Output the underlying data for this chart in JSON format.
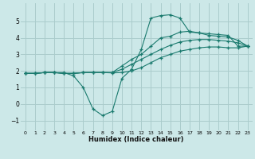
{
  "xlabel": "Humidex (Indice chaleur)",
  "ylabel": "",
  "bg_color": "#cce8e8",
  "grid_color": "#aacccc",
  "line_color": "#1a7a6e",
  "xlim": [
    -0.5,
    23.5
  ],
  "ylim": [
    -1.6,
    6.1
  ],
  "xticks": [
    0,
    1,
    2,
    3,
    4,
    5,
    6,
    7,
    8,
    9,
    10,
    11,
    12,
    13,
    14,
    15,
    16,
    17,
    18,
    19,
    20,
    21,
    22,
    23
  ],
  "yticks": [
    -1,
    0,
    1,
    2,
    3,
    4,
    5
  ],
  "line1_x": [
    0,
    1,
    2,
    3,
    4,
    5,
    6,
    7,
    8,
    9,
    10,
    11,
    12,
    13,
    14,
    15,
    16,
    17,
    18,
    19,
    20,
    21,
    22,
    23
  ],
  "line1_y": [
    1.85,
    1.85,
    1.9,
    1.9,
    1.9,
    1.7,
    1.0,
    -0.3,
    -0.7,
    -0.45,
    1.55,
    2.1,
    3.3,
    5.2,
    5.35,
    5.4,
    5.2,
    4.35,
    4.3,
    4.25,
    4.2,
    4.15,
    3.5,
    3.5
  ],
  "line2_x": [
    0,
    1,
    2,
    3,
    4,
    5,
    6,
    7,
    8,
    9,
    10,
    11,
    12,
    13,
    14,
    15,
    16,
    17,
    18,
    19,
    20,
    21,
    22,
    23
  ],
  "line2_y": [
    1.85,
    1.85,
    1.9,
    1.9,
    1.85,
    1.85,
    1.9,
    1.9,
    1.9,
    1.9,
    2.3,
    2.7,
    3.0,
    3.5,
    4.0,
    4.1,
    4.35,
    4.4,
    4.3,
    4.15,
    4.1,
    4.05,
    3.85,
    3.5
  ],
  "line3_x": [
    0,
    1,
    2,
    3,
    4,
    5,
    6,
    7,
    8,
    9,
    10,
    11,
    12,
    13,
    14,
    15,
    16,
    17,
    18,
    19,
    20,
    21,
    22,
    23
  ],
  "line3_y": [
    1.85,
    1.85,
    1.9,
    1.9,
    1.85,
    1.85,
    1.9,
    1.9,
    1.9,
    1.9,
    2.1,
    2.4,
    2.7,
    3.0,
    3.3,
    3.55,
    3.75,
    3.85,
    3.9,
    3.9,
    3.85,
    3.8,
    3.7,
    3.5
  ],
  "line4_x": [
    0,
    1,
    2,
    3,
    4,
    5,
    6,
    7,
    8,
    9,
    10,
    11,
    12,
    13,
    14,
    15,
    16,
    17,
    18,
    19,
    20,
    21,
    22,
    23
  ],
  "line4_y": [
    1.85,
    1.85,
    1.9,
    1.9,
    1.85,
    1.85,
    1.9,
    1.9,
    1.9,
    1.88,
    1.9,
    2.0,
    2.2,
    2.5,
    2.8,
    3.0,
    3.2,
    3.3,
    3.4,
    3.45,
    3.45,
    3.4,
    3.4,
    3.5
  ]
}
